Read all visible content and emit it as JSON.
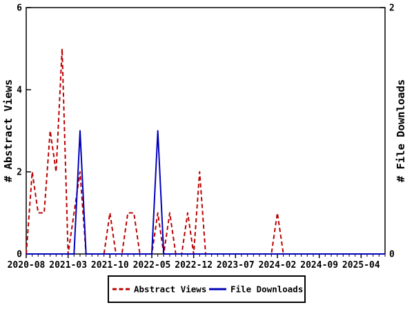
{
  "chart_data": {
    "type": "line",
    "title": "",
    "x": [
      "2020-08",
      "2020-09",
      "2020-10",
      "2020-11",
      "2020-12",
      "2021-01",
      "2021-02",
      "2021-03",
      "2021-04",
      "2021-05",
      "2021-06",
      "2021-07",
      "2021-08",
      "2021-09",
      "2021-10",
      "2021-11",
      "2021-12",
      "2022-01",
      "2022-02",
      "2022-03",
      "2022-04",
      "2022-05",
      "2022-06",
      "2022-07",
      "2022-08",
      "2022-09",
      "2022-10",
      "2022-11",
      "2022-12",
      "2023-01",
      "2023-02",
      "2023-03",
      "2023-04",
      "2023-05",
      "2023-06",
      "2023-07",
      "2023-08",
      "2023-09",
      "2023-10",
      "2023-11",
      "2023-12",
      "2024-01",
      "2024-02",
      "2024-03",
      "2024-04",
      "2024-05",
      "2024-06",
      "2024-07",
      "2024-08",
      "2024-09",
      "2024-10",
      "2024-11",
      "2024-12",
      "2025-01",
      "2025-02",
      "2025-03",
      "2025-04",
      "2025-05",
      "2025-06",
      "2025-07",
      "2025-08"
    ],
    "series": [
      {
        "name": "Abstract Views",
        "axis": "left",
        "color": "#bb0000",
        "line_style": "dashed",
        "values": [
          0,
          2,
          1,
          1,
          3,
          2,
          5,
          0,
          1,
          2,
          0,
          0,
          0,
          0,
          1,
          0,
          0,
          1,
          1,
          0,
          0,
          0,
          1,
          0,
          1,
          0,
          0,
          1,
          0,
          2,
          0,
          0,
          0,
          0,
          0,
          0,
          0,
          0,
          0,
          0,
          0,
          0,
          1,
          0,
          0,
          0,
          0,
          0,
          0,
          0,
          0,
          0,
          0,
          0,
          0,
          0,
          0,
          0,
          0,
          0,
          0
        ]
      },
      {
        "name": "File Downloads",
        "axis": "right",
        "color": "#0000bb",
        "line_style": "solid",
        "values": [
          0,
          0,
          0,
          0,
          0,
          0,
          0,
          0,
          0,
          1,
          0,
          0,
          0,
          0,
          0,
          0,
          0,
          0,
          0,
          0,
          0,
          0,
          1,
          0,
          0,
          0,
          0,
          0,
          0,
          0,
          0,
          0,
          0,
          0,
          0,
          0,
          0,
          0,
          0,
          0,
          0,
          0,
          0,
          0,
          0,
          0,
          0,
          0,
          0,
          0,
          0,
          0,
          0,
          0,
          0,
          0,
          0,
          0,
          0,
          0,
          0
        ]
      }
    ],
    "left_axis": {
      "label": "# Abstract Views",
      "range": [
        0,
        6
      ],
      "ticks": [
        0,
        2,
        4,
        6
      ]
    },
    "right_axis": {
      "label": "# File Downloads",
      "range": [
        0,
        2
      ],
      "ticks": [
        0,
        2
      ]
    },
    "x_axis": {
      "major_tick_every": 7,
      "minor_tick_unit": "month",
      "major_tick_labels": [
        "2020-08",
        "2021-03",
        "2021-10",
        "2022-05",
        "2022-12",
        "2023-07",
        "2024-02",
        "2024-09",
        "2025-04"
      ]
    },
    "legend": {
      "position": "bottom-center",
      "entries": [
        "Abstract Views",
        "File Downloads"
      ]
    },
    "grid": false,
    "colors": {
      "frame": "#000000",
      "background": "#ffffff"
    }
  }
}
